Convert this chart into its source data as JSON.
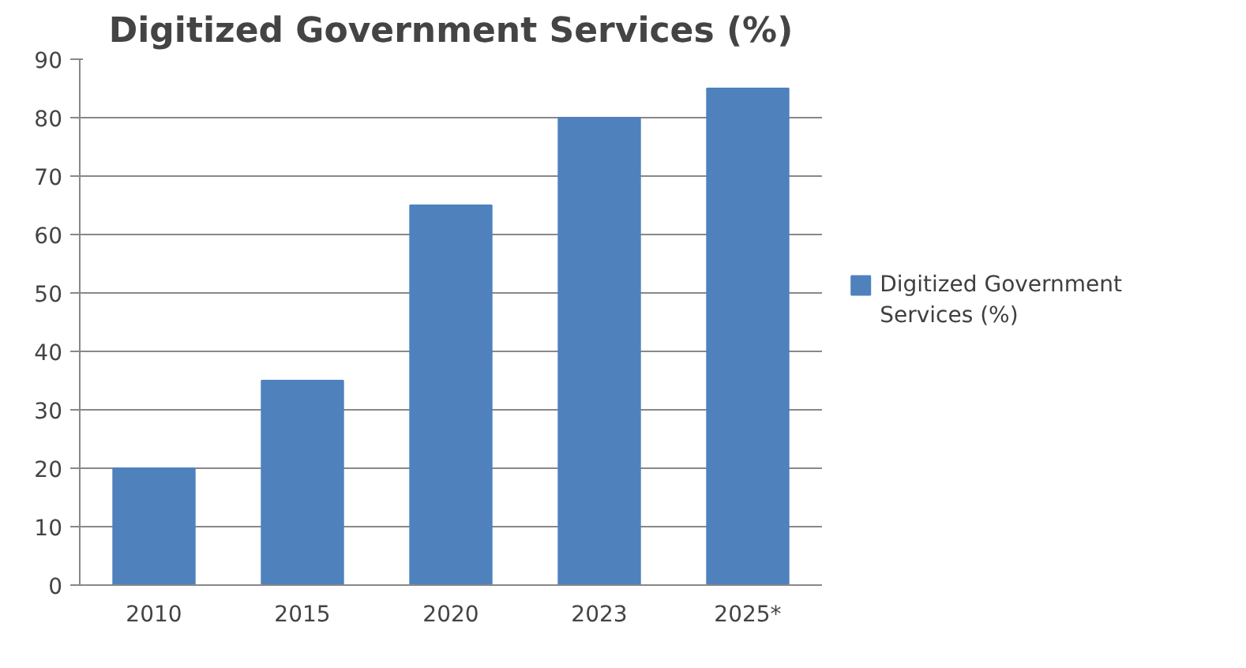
{
  "chart_data": {
    "type": "bar",
    "title": "Digitized Government Services (%)",
    "categories": [
      "2010",
      "2015",
      "2020",
      "2023",
      "2025*"
    ],
    "series": [
      {
        "name": "Digitized Government Services (%)",
        "color": "#4f81bd",
        "values": [
          20,
          35,
          65,
          80,
          85
        ]
      }
    ],
    "ylim": [
      0,
      90
    ],
    "yticks": [
      0,
      10,
      20,
      30,
      40,
      50,
      60,
      70,
      80,
      90
    ],
    "grid": "y",
    "legend": "right"
  }
}
